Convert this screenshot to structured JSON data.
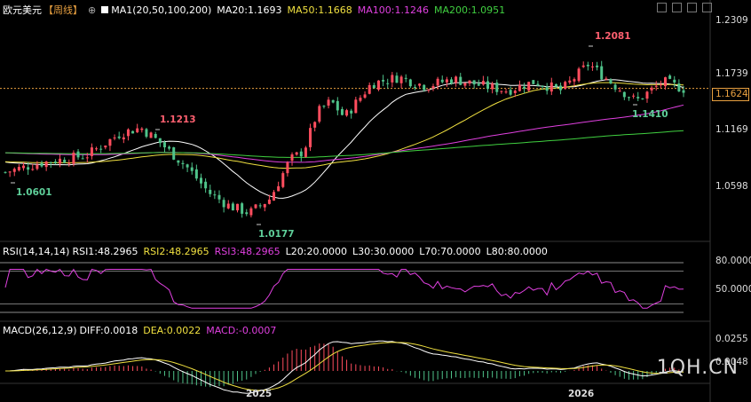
{
  "header": {
    "symbol": "欧元美元",
    "period": "【周线】",
    "ma_label": "MA1(20,50,100,200)",
    "ma20": "MA20:1.1693",
    "ma50": "MA50:1.1668",
    "ma100": "MA100:1.1246",
    "ma200": "MA200:1.0951"
  },
  "rsi_header": {
    "label": "RSI(14,14,14)",
    "rsi1": "RSI1:48.2965",
    "rsi2": "RSI2:48.2965",
    "rsi3": "RSI3:48.2965",
    "l20": "L20:20.0000",
    "l30": "L30:30.0000",
    "l70": "L70:70.0000",
    "l80": "L80:80.0000"
  },
  "macd_header": {
    "label": "MACD(26,12,9)",
    "diff": "DIFF:0.0018",
    "dea": "DEA:0.0022",
    "macd": "MACD:-0.0007"
  },
  "price_axis": [
    "1.2309",
    "1.1739",
    "1.1169",
    "1.0598"
  ],
  "current_price": "1.1624",
  "rsi_axis": [
    "80.0000",
    "50.0000"
  ],
  "macd_axis": [
    "0.0255",
    "0.0048"
  ],
  "x_ticks": [
    "2025",
    "2026"
  ],
  "annotations": {
    "high_2024": "1.1213",
    "low_2024": "1.0601",
    "low_2025": "1.0177",
    "high_2026": "1.2081",
    "low_2026": "1.1410"
  },
  "watermark": "1QH.CN",
  "colors": {
    "up": "#ff4d5e",
    "down": "#4fc38a",
    "ma20": "#ffffff",
    "ma50": "#f0e040",
    "ma100": "#e040e0",
    "ma200": "#40d040",
    "rsi": "#e040e0",
    "diff": "#ffffff",
    "dea": "#f0e040"
  },
  "chart_data": {
    "type": "candlestick",
    "title": "欧元美元【周线】",
    "price_range": [
      1.0,
      1.24
    ],
    "waypoints": [
      {
        "t": 0,
        "price": 1.068
      },
      {
        "t": 0.05,
        "price": 1.078
      },
      {
        "t": 0.12,
        "price": 1.087
      },
      {
        "t": 0.17,
        "price": 1.112
      },
      {
        "t": 0.2,
        "price": 1.118
      },
      {
        "t": 0.23,
        "price": 1.1
      },
      {
        "t": 0.27,
        "price": 1.072
      },
      {
        "t": 0.3,
        "price": 1.045
      },
      {
        "t": 0.33,
        "price": 1.03
      },
      {
        "t": 0.36,
        "price": 1.022
      },
      {
        "t": 0.39,
        "price": 1.038
      },
      {
        "t": 0.42,
        "price": 1.082
      },
      {
        "t": 0.44,
        "price": 1.092
      },
      {
        "t": 0.46,
        "price": 1.135
      },
      {
        "t": 0.48,
        "price": 1.148
      },
      {
        "t": 0.5,
        "price": 1.13
      },
      {
        "t": 0.54,
        "price": 1.168
      },
      {
        "t": 0.58,
        "price": 1.175
      },
      {
        "t": 0.62,
        "price": 1.165
      },
      {
        "t": 0.66,
        "price": 1.173
      },
      {
        "t": 0.7,
        "price": 1.166
      },
      {
        "t": 0.74,
        "price": 1.16
      },
      {
        "t": 0.78,
        "price": 1.17
      },
      {
        "t": 0.82,
        "price": 1.16
      },
      {
        "t": 0.86,
        "price": 1.19
      },
      {
        "t": 0.9,
        "price": 1.165
      },
      {
        "t": 0.93,
        "price": 1.148
      },
      {
        "t": 0.97,
        "price": 1.17
      },
      {
        "t": 1.0,
        "price": 1.162
      }
    ]
  }
}
